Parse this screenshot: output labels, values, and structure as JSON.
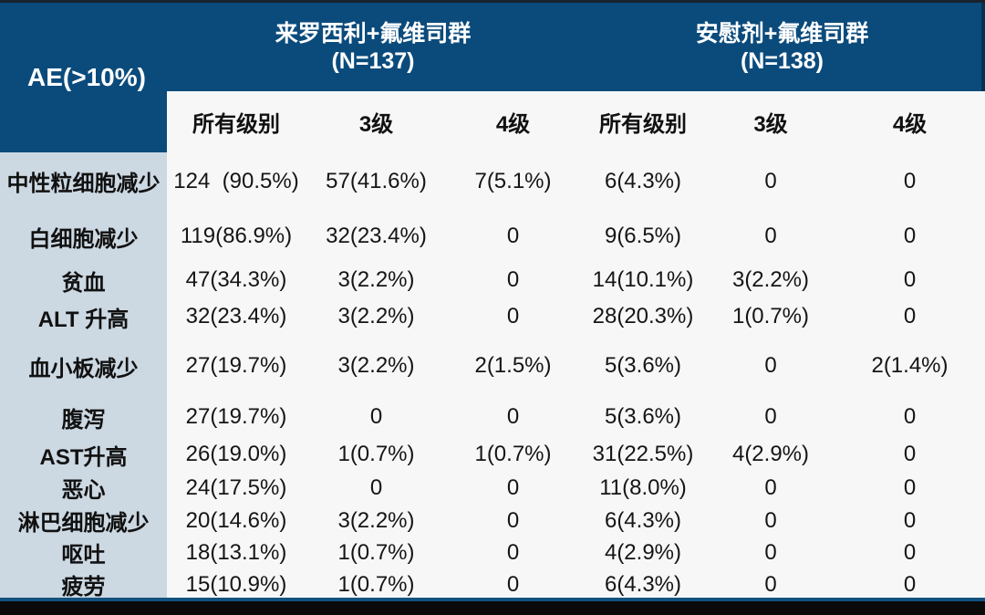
{
  "colors": {
    "header_blue": "#0b4b7c",
    "label_column_bg": "#ccd8e2",
    "body_bg": "#f7f7f7",
    "bottom_bar": "#0a0a0a",
    "header_text": "#ffffff",
    "body_text": "#151515"
  },
  "table": {
    "corner_label": "AE(>10%)",
    "groups": [
      {
        "label": "来罗西利+氟维司群",
        "n": "(N=137)"
      },
      {
        "label": "安慰剂+氟维司群",
        "n": "(N=138)"
      }
    ],
    "sub_headers": [
      "所有级别",
      "3级",
      "4级",
      "所有级别",
      "3级",
      "4级"
    ],
    "rows": [
      {
        "label": "中性粒细胞减少",
        "values": [
          "124  (90.5%)",
          "57(41.6%)",
          "7(5.1%)",
          "6(4.3%)",
          "0",
          "0"
        ]
      },
      {
        "label": "白细胞减少",
        "values": [
          "119(86.9%)",
          "32(23.4%)",
          "0",
          "9(6.5%)",
          "0",
          "0"
        ]
      },
      {
        "label": "贫血",
        "values": [
          "47(34.3%)",
          "3(2.2%)",
          "0",
          "14(10.1%)",
          "3(2.2%)",
          "0"
        ]
      },
      {
        "label": "ALT 升高",
        "values": [
          "32(23.4%)",
          "3(2.2%)",
          "0",
          "28(20.3%)",
          "1(0.7%)",
          "0"
        ]
      },
      {
        "label": "血小板减少",
        "values": [
          "27(19.7%)",
          "3(2.2%)",
          "2(1.5%)",
          "5(3.6%)",
          "0",
          "2(1.4%)"
        ]
      },
      {
        "label": "腹泻",
        "values": [
          "27(19.7%)",
          "0",
          "0",
          "5(3.6%)",
          "0",
          "0"
        ]
      },
      {
        "label": "AST升高",
        "values": [
          "26(19.0%)",
          "1(0.7%)",
          "1(0.7%)",
          "31(22.5%)",
          "4(2.9%)",
          "0"
        ]
      },
      {
        "label": "恶心",
        "values": [
          "24(17.5%)",
          "0",
          "0",
          "11(8.0%)",
          "0",
          "0"
        ]
      },
      {
        "label": "淋巴细胞减少",
        "values": [
          "20(14.6%)",
          "3(2.2%)",
          "0",
          "6(4.3%)",
          "0",
          "0"
        ]
      },
      {
        "label": "呕吐",
        "values": [
          "18(13.1%)",
          "1(0.7%)",
          "0",
          "4(2.9%)",
          "0",
          "0"
        ]
      },
      {
        "label": "疲劳",
        "values": [
          "15(10.9%)",
          "1(0.7%)",
          "0",
          "6(4.3%)",
          "0",
          "0"
        ]
      }
    ]
  }
}
